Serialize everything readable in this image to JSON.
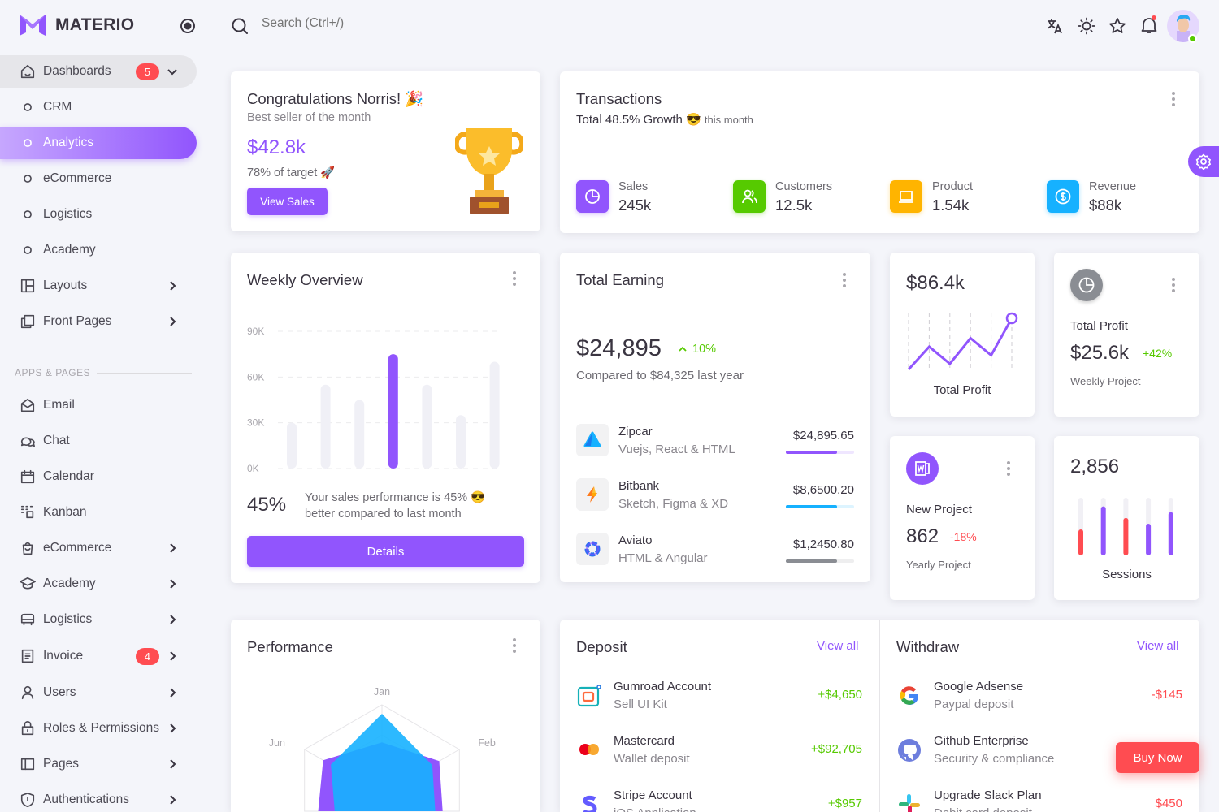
{
  "app": {
    "name": "MATERIO",
    "search_placeholder": "Search (Ctrl+/)"
  },
  "colors": {
    "primary": "#9155fd",
    "success": "#56ca00",
    "error": "#ff4c51",
    "info": "#16b1ff",
    "warning": "#ffb400",
    "secondary": "#8a8d93"
  },
  "header_icons": [
    "translate-icon",
    "sun-icon",
    "star-icon",
    "bell-icon",
    "avatar"
  ],
  "sidebar": {
    "section_label": "APPS & PAGES",
    "items": [
      {
        "label": "Dashboards",
        "icon": "home",
        "badge": "5",
        "chevron": "down",
        "state": "open"
      },
      {
        "label": "CRM",
        "icon": "circle"
      },
      {
        "label": "Analytics",
        "icon": "circle",
        "state": "active"
      },
      {
        "label": "eCommerce",
        "icon": "circle"
      },
      {
        "label": "Logistics",
        "icon": "circle"
      },
      {
        "label": "Academy",
        "icon": "circle"
      },
      {
        "label": "Layouts",
        "icon": "layout",
        "chevron": "right"
      },
      {
        "label": "Front Pages",
        "icon": "pages",
        "chevron": "right"
      },
      {
        "label": "Email",
        "icon": "mail"
      },
      {
        "label": "Chat",
        "icon": "chat"
      },
      {
        "label": "Calendar",
        "icon": "calendar"
      },
      {
        "label": "Kanban",
        "icon": "kanban"
      },
      {
        "label": "eCommerce",
        "icon": "cart",
        "chevron": "right"
      },
      {
        "label": "Academy",
        "icon": "school",
        "chevron": "right"
      },
      {
        "label": "Logistics",
        "icon": "truck",
        "chevron": "right"
      },
      {
        "label": "Invoice",
        "icon": "invoice",
        "badge": "4",
        "chevron": "right"
      },
      {
        "label": "Users",
        "icon": "user",
        "chevron": "right"
      },
      {
        "label": "Roles & Permissions",
        "icon": "lock",
        "chevron": "right"
      },
      {
        "label": "Pages",
        "icon": "page",
        "chevron": "right"
      },
      {
        "label": "Authentications",
        "icon": "shield",
        "chevron": "right"
      }
    ]
  },
  "congrats": {
    "title": "Congratulations Norris! 🎉",
    "subtitle": "Best seller of the month",
    "amount": "$42.8k",
    "target": "78% of target 🚀",
    "button": "View Sales"
  },
  "transactions": {
    "title": "Transactions",
    "growth": "Total 48.5% Growth 😎",
    "growth_suffix": "this month",
    "stats": [
      {
        "label": "Sales",
        "value": "245k",
        "icon": "pie",
        "color": "#9155fd"
      },
      {
        "label": "Customers",
        "value": "12.5k",
        "icon": "users",
        "color": "#56ca00"
      },
      {
        "label": "Product",
        "value": "1.54k",
        "icon": "laptop",
        "color": "#ffb400"
      },
      {
        "label": "Revenue",
        "value": "$88k",
        "icon": "dollar",
        "color": "#16b1ff"
      }
    ]
  },
  "weekly": {
    "title": "Weekly Overview",
    "percent": "45%",
    "text": "Your sales performance is 45% 😎 better compared to last month",
    "button": "Details"
  },
  "chart_data": [
    {
      "type": "bar",
      "title": "Weekly Overview",
      "yticks": [
        "0K",
        "30K",
        "60K",
        "90K"
      ],
      "ylim": [
        0,
        90
      ],
      "values": [
        30,
        55,
        45,
        75,
        55,
        35,
        70
      ],
      "highlight_index": 3,
      "grid": true
    },
    {
      "type": "line",
      "xlabel": "Total Profit",
      "values": [
        0,
        40,
        10,
        55,
        25,
        90
      ],
      "grid": true
    },
    {
      "type": "bar",
      "xlabel": "Sessions",
      "values": [
        0.45,
        0.85,
        0.65,
        0.55,
        0.75
      ],
      "colors": [
        "#ff4c51",
        "#9155fd",
        "#ff4c51",
        "#9155fd",
        "#9155fd"
      ]
    },
    {
      "type": "radar",
      "title": "Performance",
      "labels": [
        "Jan",
        "Feb",
        "",
        "",
        "",
        "Jun"
      ],
      "series": [
        {
          "values": [
            0.58,
            0.74,
            0.8,
            0.75,
            0.85,
            0.76
          ],
          "color": "#9155fd"
        },
        {
          "values": [
            0.9,
            0.65,
            0.7,
            0.9,
            0.6,
            0.66
          ],
          "color": "#16b1ff"
        }
      ]
    }
  ],
  "earning": {
    "title": "Total Earning",
    "amount": "$24,895",
    "change": "10%",
    "compare": "Compared to $84,325 last year",
    "rows": [
      {
        "name": "Zipcar",
        "sub": "Vuejs, React & HTML",
        "amount": "$24,895.65",
        "progress": 75,
        "color": "#9155fd",
        "icon": "zipcar"
      },
      {
        "name": "Bitbank",
        "sub": "Sketch, Figma & XD",
        "amount": "$8,6500.20",
        "progress": 75,
        "color": "#16b1ff",
        "icon": "bitbank"
      },
      {
        "name": "Aviato",
        "sub": "HTML & Angular",
        "amount": "$1,2450.80",
        "progress": 75,
        "color": "#8a8d93",
        "icon": "aviato"
      }
    ]
  },
  "profit_chart": {
    "amount": "$86.4k",
    "label": "Total Profit"
  },
  "total_profit": {
    "title": "Total Profit",
    "amount": "$25.6k",
    "change": "+42%",
    "sub": "Weekly Project"
  },
  "new_project": {
    "title": "New Project",
    "amount": "862",
    "change": "-18%",
    "sub": "Yearly Project"
  },
  "sessions": {
    "amount": "2,856",
    "label": "Sessions"
  },
  "performance": {
    "title": "Performance"
  },
  "deposit": {
    "title": "Deposit",
    "view_all": "View all",
    "rows": [
      {
        "name": "Gumroad Account",
        "sub": "Sell UI Kit",
        "amount": "+$4,650",
        "icon": "gumroad"
      },
      {
        "name": "Mastercard",
        "sub": "Wallet deposit",
        "amount": "+$92,705",
        "icon": "mastercard"
      },
      {
        "name": "Stripe Account",
        "sub": "iOS Application",
        "amount": "+$957",
        "icon": "stripe"
      }
    ]
  },
  "withdraw": {
    "title": "Withdraw",
    "view_all": "View all",
    "rows": [
      {
        "name": "Google Adsense",
        "sub": "Paypal deposit",
        "amount": "-$145",
        "icon": "google"
      },
      {
        "name": "Github Enterprise",
        "sub": "Security & compliance",
        "amount": "",
        "icon": "github"
      },
      {
        "name": "Upgrade Slack Plan",
        "sub": "Debit card deposit",
        "amount": "$450",
        "icon": "slack"
      }
    ]
  },
  "buy_now": "Buy Now"
}
